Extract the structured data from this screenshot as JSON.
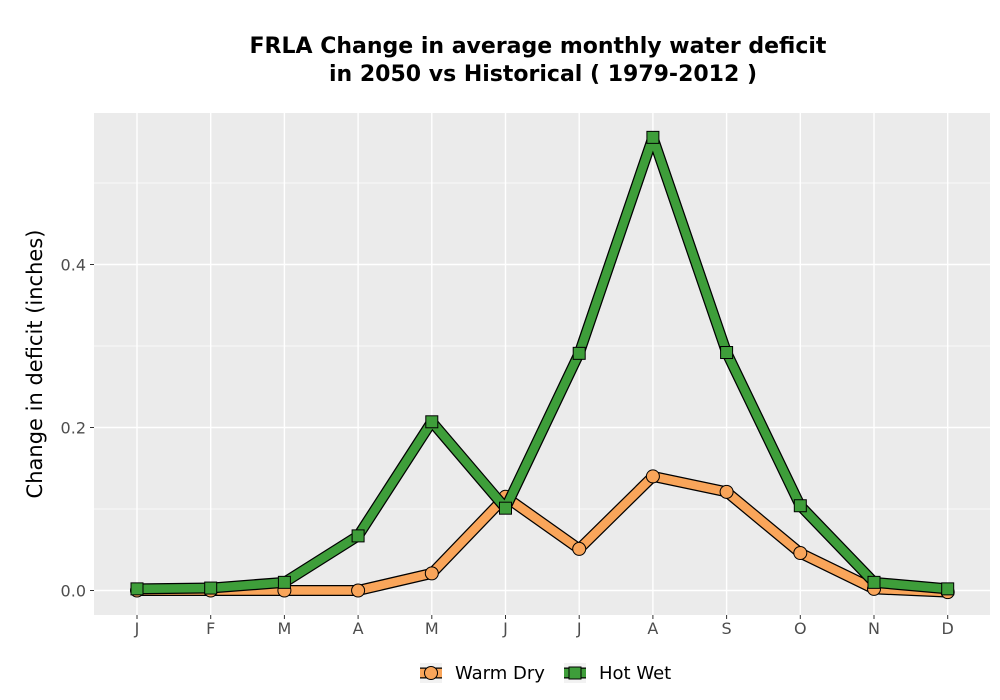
{
  "chart_data": {
    "type": "line",
    "title_line1": "FRLA  Change in average monthly water deficit",
    "title_line2": "in 2050 vs Historical ( 1979-2012 )",
    "xlabel": "",
    "ylabel": "Change in deficit (inches)",
    "categories": [
      "J",
      "F",
      "M",
      "A",
      "M",
      "J",
      "J",
      "A",
      "S",
      "O",
      "N",
      "D"
    ],
    "y_ticks": [
      0.0,
      0.2,
      0.4
    ],
    "y_tick_labels": [
      "0.0",
      "0.2",
      "0.4"
    ],
    "ylim": [
      -0.03,
      0.58
    ],
    "grid": true,
    "legend_position": "bottom",
    "series": [
      {
        "name": "Warm Dry",
        "color": "#f9a55a",
        "marker": "circle",
        "values": [
          0.0,
          0.0,
          0.0,
          0.0,
          0.021,
          0.115,
          0.051,
          0.14,
          0.121,
          0.046,
          0.002,
          -0.002
        ]
      },
      {
        "name": "Hot Wet",
        "color": "#3e9e3a",
        "marker": "square",
        "values": [
          0.002,
          0.003,
          0.01,
          0.067,
          0.207,
          0.101,
          0.291,
          0.556,
          0.292,
          0.104,
          0.01,
          0.002
        ]
      }
    ]
  }
}
